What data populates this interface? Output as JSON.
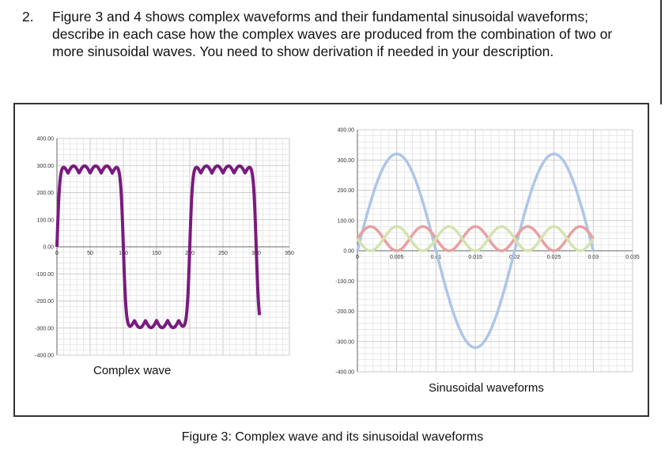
{
  "question": {
    "number": "2.",
    "lines": [
      "Figure 3 and 4 shows complex waveforms and their fundamental sinusoidal waveforms;",
      "describe in each case how the complex waves are produced from the combination of two or",
      "more sinusoidal waves. You need to show derivation if needed in your description."
    ]
  },
  "figure_caption": "Figure 3: Complex wave and its sinusoidal waveforms",
  "chart_data": [
    {
      "type": "line",
      "title": "Complex wave",
      "x_ticks": [
        "0",
        "50",
        "100",
        "150",
        "200",
        "250",
        "300",
        "350"
      ],
      "y_ticks": [
        "400.00",
        "300.00",
        "200.00",
        "100.00",
        "0.00",
        "-100.00",
        "-200.00",
        "-300.00",
        "-400.00"
      ],
      "xlim": [
        0,
        350
      ],
      "ylim": [
        -400,
        400
      ],
      "grid": true,
      "series": [
        {
          "color": "#7a1a7f",
          "description": "fundamental + third harmonic",
          "fundamental_amplitude": 320,
          "harmonic_amplitude": 33,
          "harmonic_order": 3,
          "period": 200,
          "x_range": [
            0,
            305
          ]
        }
      ]
    },
    {
      "type": "line",
      "title": "Sinusoidal waveforms",
      "x_ticks": [
        "0",
        "0.005",
        "0.01",
        "0.015",
        "0.02",
        "0.025",
        "0.03",
        "0.035"
      ],
      "y_ticks": [
        "400.00",
        "300.00",
        "200.00",
        "100.00",
        "0.00",
        "-100.00",
        "-200.00",
        "-300.00",
        "-400.00"
      ],
      "xlim": [
        0,
        0.035
      ],
      "ylim": [
        -400,
        400
      ],
      "grid": true,
      "series": [
        {
          "color": "#aec6e6",
          "amplitude": 320,
          "frequency_hz": 50,
          "phase": 0
        },
        {
          "color": "#e8a0a0",
          "amplitude": 40,
          "frequency_hz": 150,
          "phase": 0
        },
        {
          "color": "#d3e3b0",
          "amplitude": 40,
          "frequency_hz": 150,
          "phase": 3.14159
        }
      ],
      "x_range": [
        0,
        0.03
      ]
    }
  ]
}
